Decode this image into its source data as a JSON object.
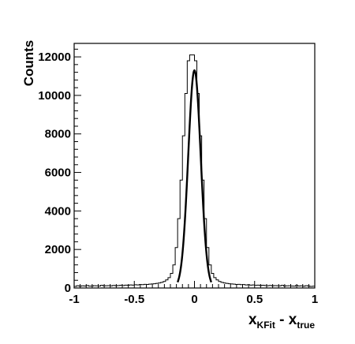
{
  "chart_data": {
    "type": "line",
    "title": "",
    "ylabel": "Counts",
    "xlabel": {
      "base1": "x",
      "sub1": "KFit",
      "sep": " - ",
      "base2": "x",
      "sub2": "true"
    },
    "xlim": [
      -1,
      1
    ],
    "ylim": [
      0,
      12700
    ],
    "x_ticks": [
      -1,
      -0.5,
      0,
      0.5,
      1
    ],
    "x_tick_labels": [
      "-1",
      "-0.5",
      "0",
      "0.5",
      "1"
    ],
    "y_ticks": [
      0,
      2000,
      4000,
      6000,
      8000,
      10000,
      12000
    ],
    "y_tick_labels": [
      "0",
      "2000",
      "4000",
      "6000",
      "8000",
      "10000",
      "12000"
    ],
    "grid": false,
    "legend": "none",
    "colors": {
      "histogram": "#000000",
      "fit": "#000000"
    },
    "series": [
      {
        "style": "histogram",
        "bin_width": 0.02,
        "bin_centers": [
          -0.99,
          -0.97,
          -0.95,
          -0.93,
          -0.91,
          -0.89,
          -0.87,
          -0.85,
          -0.83,
          -0.81,
          -0.79,
          -0.77,
          -0.75,
          -0.73,
          -0.71,
          -0.69,
          -0.67,
          -0.65,
          -0.63,
          -0.61,
          -0.59,
          -0.57,
          -0.55,
          -0.53,
          -0.51,
          -0.49,
          -0.47,
          -0.45,
          -0.43,
          -0.41,
          -0.39,
          -0.37,
          -0.35,
          -0.33,
          -0.31,
          -0.29,
          -0.27,
          -0.25,
          -0.23,
          -0.21,
          -0.19,
          -0.17,
          -0.15,
          -0.13,
          -0.11,
          -0.09,
          -0.07,
          -0.05,
          -0.03,
          -0.01,
          0.01,
          0.03,
          0.05,
          0.07,
          0.09,
          0.11,
          0.13,
          0.15,
          0.17,
          0.19,
          0.21,
          0.23,
          0.25,
          0.27,
          0.29,
          0.31,
          0.33,
          0.35,
          0.37,
          0.39,
          0.41,
          0.43,
          0.45,
          0.47,
          0.49,
          0.51,
          0.53,
          0.55,
          0.57,
          0.59,
          0.61,
          0.63,
          0.65,
          0.67,
          0.69,
          0.71,
          0.73,
          0.75,
          0.77,
          0.79,
          0.81,
          0.83,
          0.85,
          0.87,
          0.89,
          0.91,
          0.93,
          0.95,
          0.97,
          0.99
        ],
        "counts": [
          80,
          120,
          90,
          110,
          100,
          130,
          95,
          105,
          120,
          110,
          100,
          140,
          110,
          120,
          125,
          110,
          135,
          120,
          130,
          145,
          130,
          150,
          140,
          160,
          150,
          170,
          160,
          180,
          175,
          190,
          185,
          200,
          210,
          220,
          240,
          260,
          290,
          340,
          420,
          540,
          760,
          1200,
          2100,
          3600,
          5600,
          7900,
          10100,
          11800,
          12100,
          12100,
          11800,
          10100,
          7900,
          5600,
          3600,
          2100,
          1200,
          760,
          540,
          420,
          340,
          290,
          260,
          240,
          220,
          210,
          200,
          185,
          190,
          175,
          180,
          160,
          170,
          150,
          160,
          140,
          150,
          130,
          145,
          130,
          120,
          135,
          110,
          125,
          120,
          110,
          140,
          100,
          110,
          120,
          105,
          95,
          130,
          100,
          110,
          90,
          120,
          100,
          80,
          90
        ]
      },
      {
        "style": "curve",
        "function": "gaussian",
        "amplitude": 11300,
        "mean": 0.0,
        "sigma": 0.052,
        "x_range": [
          -0.14,
          0.14
        ]
      }
    ]
  }
}
